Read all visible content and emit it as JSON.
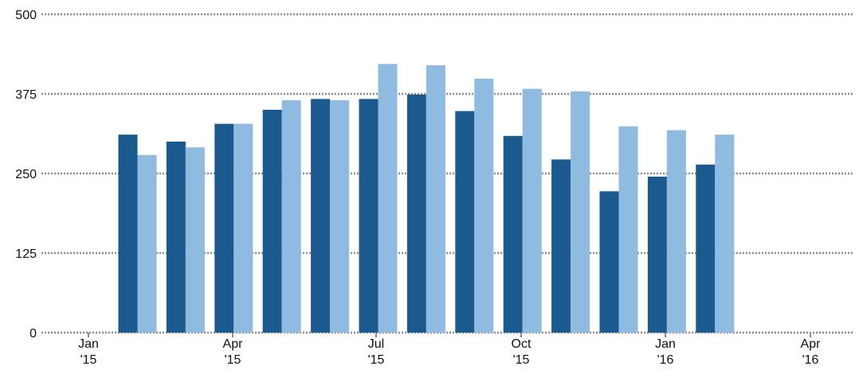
{
  "chart_data": {
    "type": "bar",
    "title": "",
    "xlabel": "",
    "ylabel": "",
    "ylim": [
      0,
      500
    ],
    "y_ticks": [
      0,
      125,
      250,
      375,
      500
    ],
    "grid": "dotted horizontal",
    "legend": "none",
    "x_tick_labels": [
      {
        "month": "Jan",
        "year": "'15"
      },
      {
        "month": "Apr",
        "year": "'15"
      },
      {
        "month": "Jul",
        "year": "'15"
      },
      {
        "month": "Oct",
        "year": "'15"
      },
      {
        "month": "Jan",
        "year": "'16"
      },
      {
        "month": "Apr",
        "year": "'16"
      }
    ],
    "categories": [
      "2015-02",
      "2015-03",
      "2015-04",
      "2015-05",
      "2015-06",
      "2015-07",
      "2015-08",
      "2015-09",
      "2015-10",
      "2015-11",
      "2015-12",
      "2016-01",
      "2016-02"
    ],
    "series": [
      {
        "color": "#1b5a8e",
        "values": [
          311,
          300,
          328,
          350,
          367,
          367,
          374,
          348,
          309,
          272,
          222,
          245,
          264
        ]
      },
      {
        "color": "#8fbbe0",
        "values": [
          279,
          291,
          328,
          365,
          365,
          422,
          420,
          399,
          383,
          379,
          324,
          318,
          311
        ]
      }
    ]
  }
}
